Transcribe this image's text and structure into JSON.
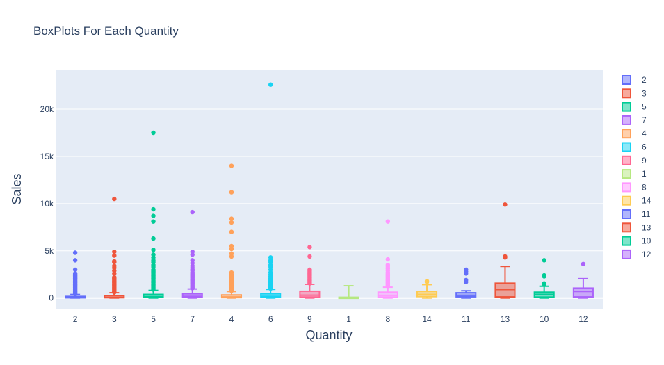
{
  "chart_data": {
    "type": "box",
    "title": "BoxPlots For Each Quantity",
    "xlabel": "Quantity",
    "ylabel": "Sales",
    "ylim": [
      -1200,
      24200
    ],
    "yticks": [
      0,
      5000,
      10000,
      15000,
      20000
    ],
    "ytick_labels": [
      "0",
      "5k",
      "10k",
      "15k",
      "20k"
    ],
    "grid": true,
    "legend_position": "right",
    "categories": [
      "2",
      "3",
      "5",
      "7",
      "4",
      "6",
      "9",
      "1",
      "8",
      "14",
      "11",
      "13",
      "10",
      "12"
    ],
    "series": [
      {
        "name": "2",
        "color": "#636efa",
        "min": 0,
        "q1": 20,
        "median": 60,
        "q3": 170,
        "max": 370,
        "outliers": [
          420,
          500,
          600,
          700,
          800,
          900,
          1000,
          1100,
          1200,
          1300,
          1400,
          1500,
          1600,
          1700,
          1800,
          1900,
          2000,
          2100,
          2200,
          2300,
          2400,
          2500,
          2600,
          3000,
          4000,
          4800
        ]
      },
      {
        "name": "3",
        "color": "#ef553b",
        "min": 0,
        "q1": 30,
        "median": 90,
        "q3": 270,
        "max": 560,
        "outliers": [
          600,
          700,
          800,
          900,
          1000,
          1100,
          1200,
          1300,
          1400,
          1500,
          1600,
          1700,
          1800,
          1900,
          2000,
          2100,
          2200,
          2600,
          2900,
          3200,
          3400,
          3800,
          3900,
          4500,
          4900,
          10500
        ]
      },
      {
        "name": "5",
        "color": "#00cc96",
        "min": 0,
        "q1": 60,
        "median": 150,
        "q3": 380,
        "max": 810,
        "outliers": [
          900,
          1000,
          1100,
          1200,
          1300,
          1400,
          1500,
          1600,
          1700,
          1800,
          1900,
          2000,
          2100,
          2200,
          2300,
          2400,
          2500,
          2600,
          2700,
          2800,
          2900,
          3000,
          3300,
          3500,
          3800,
          4000,
          4300,
          4600,
          5100,
          6300,
          8100,
          8700,
          9400,
          17500
        ]
      },
      {
        "name": "7",
        "color": "#ab63fa",
        "min": 0,
        "q1": 70,
        "median": 180,
        "q3": 450,
        "max": 960,
        "outliers": [
          1050,
          1150,
          1250,
          1350,
          1450,
          1550,
          1650,
          1750,
          1850,
          1950,
          2050,
          2150,
          2250,
          2350,
          2450,
          2550,
          2700,
          2900,
          3000,
          3200,
          3400,
          3700,
          4000,
          4600,
          4900,
          9100
        ]
      },
      {
        "name": "4",
        "color": "#ffa15a",
        "min": 0,
        "q1": 40,
        "median": 120,
        "q3": 330,
        "max": 690,
        "outliers": [
          760,
          850,
          950,
          1050,
          1150,
          1250,
          1350,
          1450,
          1550,
          1650,
          1750,
          1850,
          1950,
          2050,
          2150,
          2250,
          2350,
          2500,
          2700,
          4400,
          4700,
          5200,
          5500,
          7000,
          8000,
          8400,
          11200,
          14000
        ]
      },
      {
        "name": "6",
        "color": "#19d3f3",
        "min": 0,
        "q1": 70,
        "median": 180,
        "q3": 450,
        "max": 920,
        "outliers": [
          1000,
          1100,
          1200,
          1300,
          1400,
          1500,
          1600,
          1700,
          1800,
          1900,
          2000,
          2100,
          2300,
          2500,
          2700,
          3000,
          3300,
          3500,
          3800,
          4000,
          4300,
          22600
        ]
      },
      {
        "name": "9",
        "color": "#ff6692",
        "min": 0,
        "q1": 100,
        "median": 300,
        "q3": 720,
        "max": 1450,
        "outliers": [
          1550,
          1650,
          1750,
          1850,
          1950,
          2050,
          2150,
          2250,
          2350,
          2450,
          2550,
          2650,
          2750,
          2850,
          3000,
          4400,
          5400
        ]
      },
      {
        "name": "1",
        "color": "#b6e880",
        "min": 0,
        "q1": 10,
        "median": 30,
        "q3": 80,
        "max": 1300,
        "outliers": []
      },
      {
        "name": "8",
        "color": "#ff97ff",
        "min": 0,
        "q1": 100,
        "median": 280,
        "q3": 620,
        "max": 1150,
        "outliers": [
          1250,
          1350,
          1450,
          1550,
          1650,
          1750,
          1850,
          1950,
          2050,
          2150,
          2250,
          2350,
          2450,
          2550,
          2700,
          2900,
          3100,
          3300,
          3500,
          4100,
          8100
        ]
      },
      {
        "name": "14",
        "color": "#fecb52",
        "min": 0,
        "q1": 150,
        "median": 380,
        "q3": 700,
        "max": 1420,
        "outliers": [
          1700,
          1800
        ]
      },
      {
        "name": "11",
        "color": "#636efa",
        "min": 0,
        "q1": 130,
        "median": 280,
        "q3": 560,
        "max": 770,
        "outliers": [
          1700,
          1900,
          2600,
          2800,
          3000
        ]
      },
      {
        "name": "13",
        "color": "#ef553b",
        "min": 0,
        "q1": 120,
        "median": 900,
        "q3": 1570,
        "max": 3350,
        "outliers": [
          4300,
          4400,
          9900
        ]
      },
      {
        "name": "10",
        "color": "#00cc96",
        "min": 0,
        "q1": 100,
        "median": 380,
        "q3": 620,
        "max": 1250,
        "outliers": [
          1450,
          1550,
          2300,
          2400,
          4000
        ]
      },
      {
        "name": "12",
        "color": "#ab63fa",
        "min": 0,
        "q1": 120,
        "median": 700,
        "q3": 1050,
        "max": 2050,
        "outliers": [
          3600
        ]
      }
    ]
  }
}
